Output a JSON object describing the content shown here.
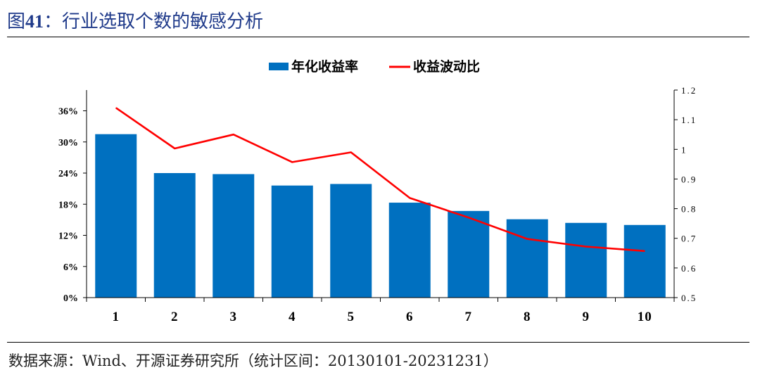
{
  "figure": {
    "title_prefix": "图",
    "title_number": "41",
    "title_text": "：行业选取个数的敏感分析",
    "source": "数据来源：Wind、开源证券研究所（统计区间：20130101-20231231）"
  },
  "colors": {
    "bar": "#0070c0",
    "line": "#ff0000",
    "title": "#1f3a8a"
  },
  "chart_data": {
    "type": "bar",
    "categories": [
      "1",
      "2",
      "3",
      "4",
      "5",
      "6",
      "7",
      "8",
      "9",
      "10"
    ],
    "series": [
      {
        "name": "年化收益率",
        "type": "bar",
        "axis": "left",
        "values": [
          0.315,
          0.24,
          0.238,
          0.216,
          0.219,
          0.183,
          0.167,
          0.151,
          0.144,
          0.14
        ]
      },
      {
        "name": "收益波动比",
        "type": "line",
        "axis": "right",
        "values": [
          1.14,
          1.003,
          1.05,
          0.957,
          0.99,
          0.836,
          0.77,
          0.698,
          0.672,
          0.657
        ]
      }
    ],
    "y_left": {
      "min": 0,
      "max": 0.4,
      "ticks": [
        {
          "value": 0,
          "label": "0%"
        },
        {
          "value": 0.06,
          "label": "6%"
        },
        {
          "value": 0.12,
          "label": "12%"
        },
        {
          "value": 0.18,
          "label": "18%"
        },
        {
          "value": 0.24,
          "label": "24%"
        },
        {
          "value": 0.3,
          "label": "30%"
        },
        {
          "value": 0.36,
          "label": "36%"
        }
      ]
    },
    "y_right": {
      "min": 0.5,
      "max": 1.2,
      "ticks": [
        {
          "value": 0.5,
          "label": "0.5"
        },
        {
          "value": 0.6,
          "label": "0.6"
        },
        {
          "value": 0.7,
          "label": "0.7"
        },
        {
          "value": 0.8,
          "label": "0.8"
        },
        {
          "value": 0.9,
          "label": "0.9"
        },
        {
          "value": 1.0,
          "label": "1"
        },
        {
          "value": 1.1,
          "label": "1.1"
        },
        {
          "value": 1.2,
          "label": "1.2"
        }
      ]
    },
    "legend_position": "top-center",
    "grid": false
  }
}
